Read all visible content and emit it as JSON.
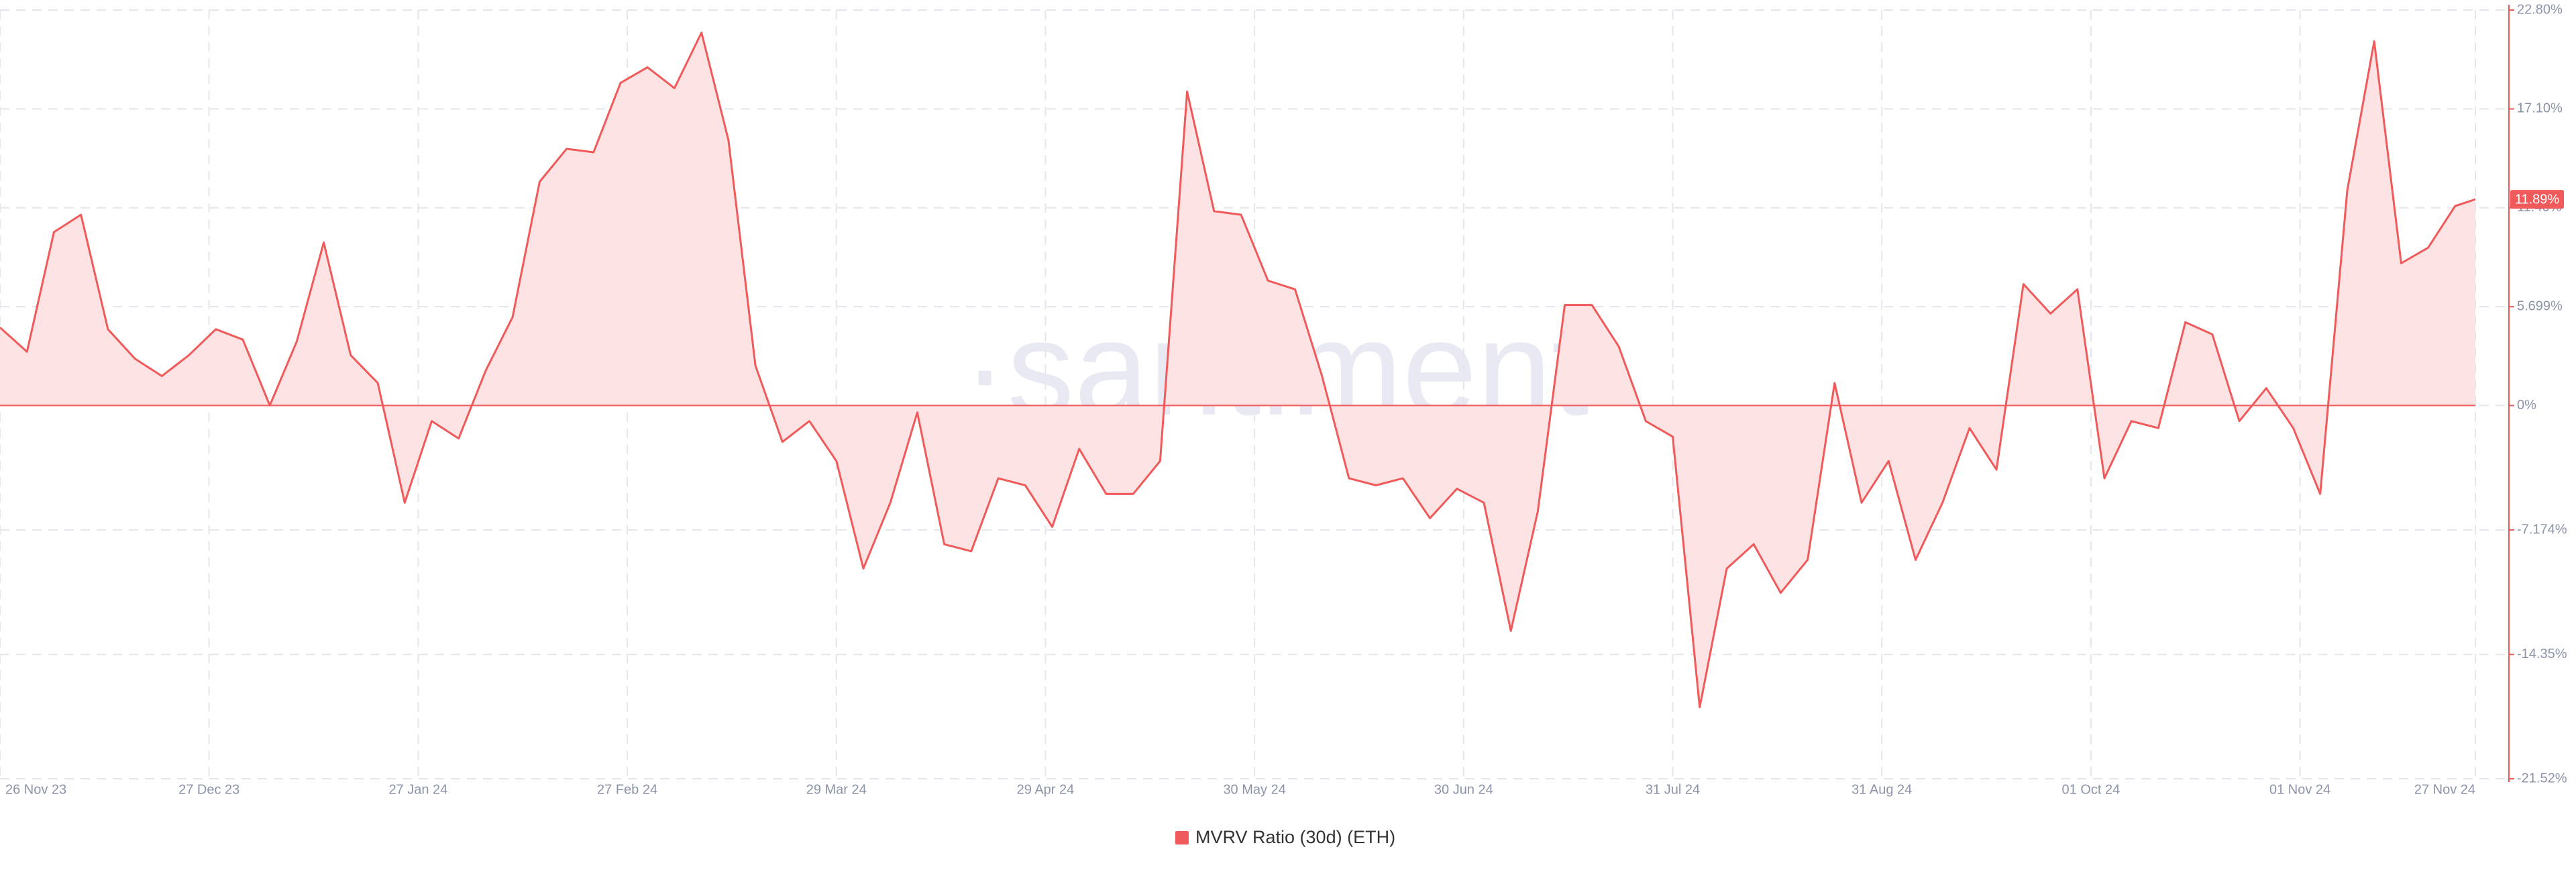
{
  "chart_data": {
    "type": "area-line",
    "watermark": "·santiment·",
    "x": [
      "2023-11-26",
      "2023-11-30",
      "2023-12-04",
      "2023-12-08",
      "2023-12-12",
      "2023-12-16",
      "2023-12-20",
      "2023-12-24",
      "2023-12-28",
      "2024-01-01",
      "2024-01-05",
      "2024-01-09",
      "2024-01-13",
      "2024-01-17",
      "2024-01-21",
      "2024-01-25",
      "2024-01-29",
      "2024-02-02",
      "2024-02-06",
      "2024-02-10",
      "2024-02-14",
      "2024-02-18",
      "2024-02-22",
      "2024-02-26",
      "2024-03-01",
      "2024-03-05",
      "2024-03-09",
      "2024-03-13",
      "2024-03-17",
      "2024-03-21",
      "2024-03-25",
      "2024-03-29",
      "2024-04-02",
      "2024-04-06",
      "2024-04-10",
      "2024-04-14",
      "2024-04-18",
      "2024-04-22",
      "2024-04-26",
      "2024-04-30",
      "2024-05-04",
      "2024-05-08",
      "2024-05-12",
      "2024-05-16",
      "2024-05-20",
      "2024-05-24",
      "2024-05-28",
      "2024-06-01",
      "2024-06-05",
      "2024-06-09",
      "2024-06-13",
      "2024-06-17",
      "2024-06-21",
      "2024-06-25",
      "2024-06-29",
      "2024-07-03",
      "2024-07-07",
      "2024-07-11",
      "2024-07-15",
      "2024-07-19",
      "2024-07-23",
      "2024-07-27",
      "2024-07-31",
      "2024-08-04",
      "2024-08-08",
      "2024-08-12",
      "2024-08-16",
      "2024-08-20",
      "2024-08-24",
      "2024-08-28",
      "2024-09-01",
      "2024-09-05",
      "2024-09-09",
      "2024-09-13",
      "2024-09-17",
      "2024-09-21",
      "2024-09-25",
      "2024-09-29",
      "2024-10-03",
      "2024-10-07",
      "2024-10-11",
      "2024-10-15",
      "2024-10-19",
      "2024-10-23",
      "2024-10-27",
      "2024-10-31",
      "2024-11-04",
      "2024-11-08",
      "2024-11-12",
      "2024-11-16",
      "2024-11-20",
      "2024-11-24",
      "2024-11-27"
    ],
    "series": [
      {
        "name": "MVRV Ratio (30d) (ETH)",
        "color": "#f05a5a",
        "fill": "#fde3e3",
        "values": [
          4.5,
          3.1,
          10,
          11,
          4.4,
          2.7,
          1.7,
          2.9,
          4.4,
          3.8,
          0,
          3.7,
          9.4,
          2.9,
          1.3,
          -5.6,
          -0.9,
          -1.9,
          2,
          5.1,
          12.9,
          14.8,
          14.6,
          18.6,
          19.5,
          18.3,
          21.5,
          15.3,
          2.3,
          -2.1,
          -0.9,
          -3.2,
          -9.4,
          -5.6,
          -0.4,
          -8,
          -8.4,
          -4.2,
          -4.6,
          -7,
          -2.5,
          -5.1,
          -5.1,
          -3.2,
          18.1,
          11.2,
          11,
          7.2,
          6.7,
          1.7,
          -4.2,
          -4.6,
          -4.2,
          -6.5,
          -4.8,
          -5.6,
          -13,
          -6.1,
          5.8,
          5.8,
          3.4,
          -0.9,
          -1.8,
          -17.4,
          -9.4,
          -8,
          -10.8,
          -8.9,
          1.3,
          -5.6,
          -3.2,
          -8.9,
          -5.6,
          -1.3,
          -3.7,
          7,
          5.3,
          6.7,
          -4.2,
          -0.9,
          -1.3,
          4.8,
          4.1,
          -0.9,
          1,
          -1.3,
          -5.1,
          12.4,
          21,
          8.2,
          9.1,
          11.5,
          11.89
        ]
      }
    ],
    "last_value_label": "11.89%",
    "xlim": [
      "2023-11-26",
      "2024-11-27"
    ],
    "xticks": [
      {
        "value": "2023-11-26",
        "label": "26 Nov 23"
      },
      {
        "value": "2023-12-27",
        "label": "27 Dec 23"
      },
      {
        "value": "2024-01-27",
        "label": "27 Jan 24"
      },
      {
        "value": "2024-02-27",
        "label": "27 Feb 24"
      },
      {
        "value": "2024-03-29",
        "label": "29 Mar 24"
      },
      {
        "value": "2024-04-29",
        "label": "29 Apr 24"
      },
      {
        "value": "2024-05-30",
        "label": "30 May 24"
      },
      {
        "value": "2024-06-30",
        "label": "30 Jun 24"
      },
      {
        "value": "2024-07-31",
        "label": "31 Jul 24"
      },
      {
        "value": "2024-08-31",
        "label": "31 Aug 24"
      },
      {
        "value": "2024-10-01",
        "label": "01 Oct 24"
      },
      {
        "value": "2024-11-01",
        "label": "01 Nov 24"
      },
      {
        "value": "2024-11-27",
        "label": "27 Nov 24"
      }
    ],
    "ylim": [
      -21.52,
      22.8
    ],
    "yticks": [
      {
        "value": 22.8,
        "label": "22.80%"
      },
      {
        "value": 17.1,
        "label": "17.10%"
      },
      {
        "value": 11.4,
        "label": "11.40%"
      },
      {
        "value": 5.699,
        "label": "5.699%"
      },
      {
        "value": 0,
        "label": "0%"
      },
      {
        "value": -7.174,
        "label": "-7.174%"
      },
      {
        "value": -14.35,
        "label": "-14.35%"
      },
      {
        "value": -21.52,
        "label": "-21.52%"
      }
    ],
    "grid": true,
    "legend": "bottom"
  }
}
